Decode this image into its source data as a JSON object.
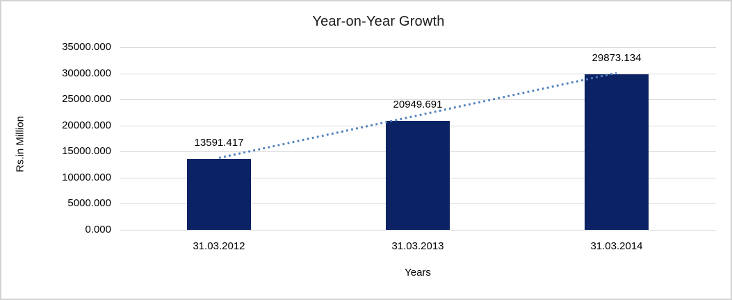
{
  "chart_data": {
    "type": "bar",
    "title": "Year-on-Year Growth",
    "xlabel": "Years",
    "ylabel": "Rs.in Million",
    "categories": [
      "31.03.2012",
      "31.03.2013",
      "31.03.2014"
    ],
    "series": [
      {
        "name": "Rs.in Million",
        "values": [
          13591.417,
          20949.691,
          29873.134
        ]
      }
    ],
    "data_labels": [
      "13591.417",
      "20949.691",
      "29873.134"
    ],
    "ytick_labels": [
      "0.000",
      "5000.000",
      "10000.000",
      "15000.000",
      "20000.000",
      "25000.000",
      "30000.000",
      "35000.000"
    ],
    "ytick_values": [
      0,
      5000,
      10000,
      15000,
      20000,
      25000,
      30000,
      35000
    ],
    "ylim": [
      0,
      35000
    ],
    "grid": true,
    "legend_position": "none",
    "trendline": {
      "type": "linear",
      "style": "dotted"
    },
    "colors": {
      "bar_fill": "#0b2264",
      "trendline": "#4f81bd",
      "gridline": "#d9d9d9",
      "text": "#000000",
      "frame_border": "#d2d2d2",
      "background": "#ffffff"
    }
  }
}
